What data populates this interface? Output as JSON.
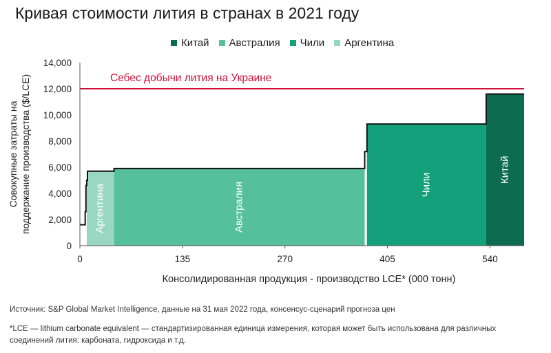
{
  "chart_data": {
    "type": "area",
    "title": "Кривая стоимости лития в странах в 2021 году",
    "ylabel_line1": "Совокупные затраты на",
    "ylabel_line2": "поддержание производства ($/LCE)",
    "xlabel": "Консолидированная продукция - производство LCE* (000 тонн)",
    "x_ticks": [
      0,
      135,
      270,
      405,
      540
    ],
    "y_ticks": [
      0,
      2000,
      4000,
      6000,
      8000,
      10000,
      12000,
      14000
    ],
    "y_tick_labels": [
      "0",
      "2,000",
      "4,000",
      "6,000",
      "8,000",
      "10,000",
      "12,000",
      "14,000"
    ],
    "x_tick_labels": [
      "0",
      "135",
      "270",
      "405",
      "540"
    ],
    "xlim": [
      0,
      585
    ],
    "ylim": [
      0,
      14000
    ],
    "grid": false,
    "legend_position": "top",
    "legend": [
      {
        "name": "Китай",
        "color": "#0d6b4f"
      },
      {
        "name": "Австралия",
        "color": "#56bf9c"
      },
      {
        "name": "Чили",
        "color": "#14a07a"
      },
      {
        "name": "Аргентина",
        "color": "#9ad7c3"
      }
    ],
    "segments": [
      {
        "country": "Аргентина",
        "x_start": 9,
        "x_end": 45,
        "value": 5700,
        "color": "#9ad7c3",
        "label": "Аргентина"
      },
      {
        "country": "Австралия",
        "x_start": 45,
        "x_end": 375,
        "value": 5900,
        "color": "#56bf9c",
        "label": "Австралия"
      },
      {
        "country": "Чили",
        "x_start": 378,
        "x_end": 535,
        "value": 9300,
        "color": "#14a07a",
        "label": "Чили"
      },
      {
        "country": "Китай",
        "x_start": 535,
        "x_end": 585,
        "value": 11600,
        "color": "#0d6b4f",
        "label": "Китай"
      }
    ],
    "curve": [
      [
        0,
        1600
      ],
      [
        7,
        1600
      ],
      [
        7,
        2600
      ],
      [
        8,
        2600
      ],
      [
        8,
        4600
      ],
      [
        9,
        4600
      ],
      [
        9,
        5000
      ],
      [
        10,
        5000
      ],
      [
        10,
        5700
      ],
      [
        45,
        5700
      ],
      [
        45,
        5900
      ],
      [
        375,
        5900
      ],
      [
        375,
        7200
      ],
      [
        378,
        7200
      ],
      [
        378,
        9300
      ],
      [
        535,
        9300
      ],
      [
        535,
        11600
      ],
      [
        585,
        11600
      ]
    ],
    "reference_line": {
      "value": 12000,
      "label": "Себес добычи лития на Украине",
      "color": "#d0103a"
    }
  },
  "source": "Источник: S&P Global Market Intelligence, данные на 31 мая 2022 года, консенсус-сценарий прогноза цен",
  "footnote": "*LCE — lithium carbonate equivalent — стандартизированная единица измерения, которая может быть использована для различных соединений лития: карбоната, гидроксида и т.д."
}
